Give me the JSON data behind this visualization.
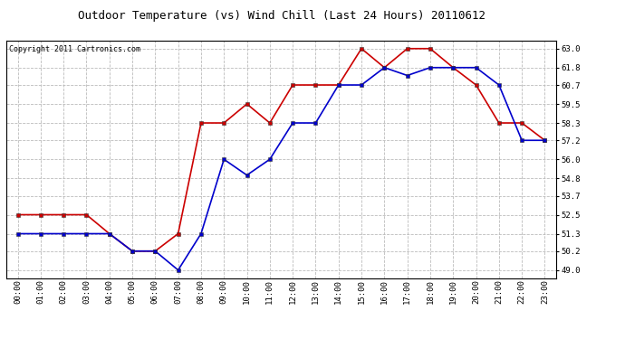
{
  "title": "Outdoor Temperature (vs) Wind Chill (Last 24 Hours) 20110612",
  "copyright": "Copyright 2011 Cartronics.com",
  "hours": [
    "00:00",
    "01:00",
    "02:00",
    "03:00",
    "04:00",
    "05:00",
    "06:00",
    "07:00",
    "08:00",
    "09:00",
    "10:00",
    "11:00",
    "12:00",
    "13:00",
    "14:00",
    "15:00",
    "16:00",
    "17:00",
    "18:00",
    "19:00",
    "20:00",
    "21:00",
    "22:00",
    "23:00"
  ],
  "red_temps": [
    52.5,
    52.5,
    52.5,
    52.5,
    51.3,
    50.2,
    50.2,
    51.3,
    58.3,
    58.3,
    59.5,
    58.3,
    60.7,
    60.7,
    60.7,
    63.0,
    61.8,
    63.0,
    63.0,
    61.8,
    60.7,
    58.3,
    58.3,
    57.2
  ],
  "blue_temps": [
    51.3,
    51.3,
    51.3,
    51.3,
    51.3,
    50.2,
    50.2,
    49.0,
    51.3,
    56.0,
    55.0,
    56.0,
    58.3,
    58.3,
    60.7,
    60.7,
    61.8,
    61.3,
    61.8,
    61.8,
    61.8,
    60.7,
    57.2,
    57.2
  ],
  "red_color": "#cc0000",
  "blue_color": "#0000cc",
  "yticks": [
    49.0,
    50.2,
    51.3,
    52.5,
    53.7,
    54.8,
    56.0,
    57.2,
    58.3,
    59.5,
    60.7,
    61.8,
    63.0
  ],
  "ylim": [
    48.5,
    63.5
  ],
  "bg_color": "#ffffff",
  "grid_color": "#bbbbbb",
  "marker": "s",
  "marker_size": 3,
  "line_width": 1.2,
  "title_fontsize": 9,
  "tick_fontsize": 6.5,
  "copyright_fontsize": 6
}
